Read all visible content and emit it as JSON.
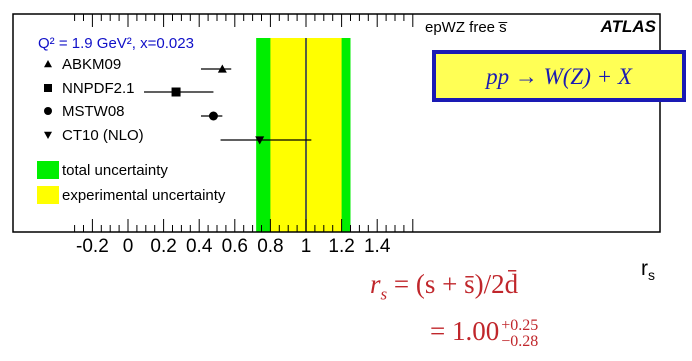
{
  "chart_data": {
    "type": "scatter",
    "title": "",
    "xlabel": "r",
    "xlabel_sub": "s",
    "ylabel": "",
    "xlim": [
      -0.33,
      1.6
    ],
    "x_ticks": [
      -0.2,
      0,
      0.2,
      0.4,
      0.6,
      0.8,
      1,
      1.2,
      1.4
    ],
    "x_tick_labels": [
      "-0.2",
      "0",
      "0.2",
      "0.4",
      "0.6",
      "0.8",
      "1",
      "1.2",
      "1.4"
    ],
    "grid": false,
    "legend_position": "top-left",
    "header_text": "Q² = 1.9 GeV², x=0.023",
    "series": [
      {
        "name": "ABKM09",
        "marker": "triangle-up",
        "value": 0.53,
        "err_low": 0.12,
        "err_high": 0.05
      },
      {
        "name": "NNPDF2.1",
        "marker": "square",
        "value": 0.27,
        "err_low": 0.18,
        "err_high": 0.21
      },
      {
        "name": "MSTW08",
        "marker": "circle",
        "value": 0.48,
        "err_low": 0.07,
        "err_high": 0.05
      },
      {
        "name": "CT10 (NLO)",
        "marker": "triangle-down",
        "value": 0.74,
        "err_low": 0.22,
        "err_high": 0.29
      }
    ],
    "bands": [
      {
        "name": "total uncertainty",
        "color": "#00ee00",
        "low": 0.72,
        "high": 1.25
      },
      {
        "name": "experimental uncertainty",
        "color": "#ffff00",
        "low": 0.8,
        "high": 1.2
      }
    ],
    "central_value": {
      "label": "epWZ free s̅",
      "value": 1.0
    },
    "atlas_label": "ATLAS",
    "process_label": "pp → W(Z) + X",
    "colors": {
      "header": "#1010c8",
      "process_box_fill": "#ffff55",
      "process_text": "#1a1ab4",
      "result": "#c0262b"
    }
  },
  "result": {
    "line1_lhs": "r",
    "line1_lhs_sub": "s",
    "line1_rhs": "= (s + s̄)/2d̄",
    "line2_value": "= 1.00",
    "line2_sup": "+0.25",
    "line2_sub": "−0.28"
  }
}
